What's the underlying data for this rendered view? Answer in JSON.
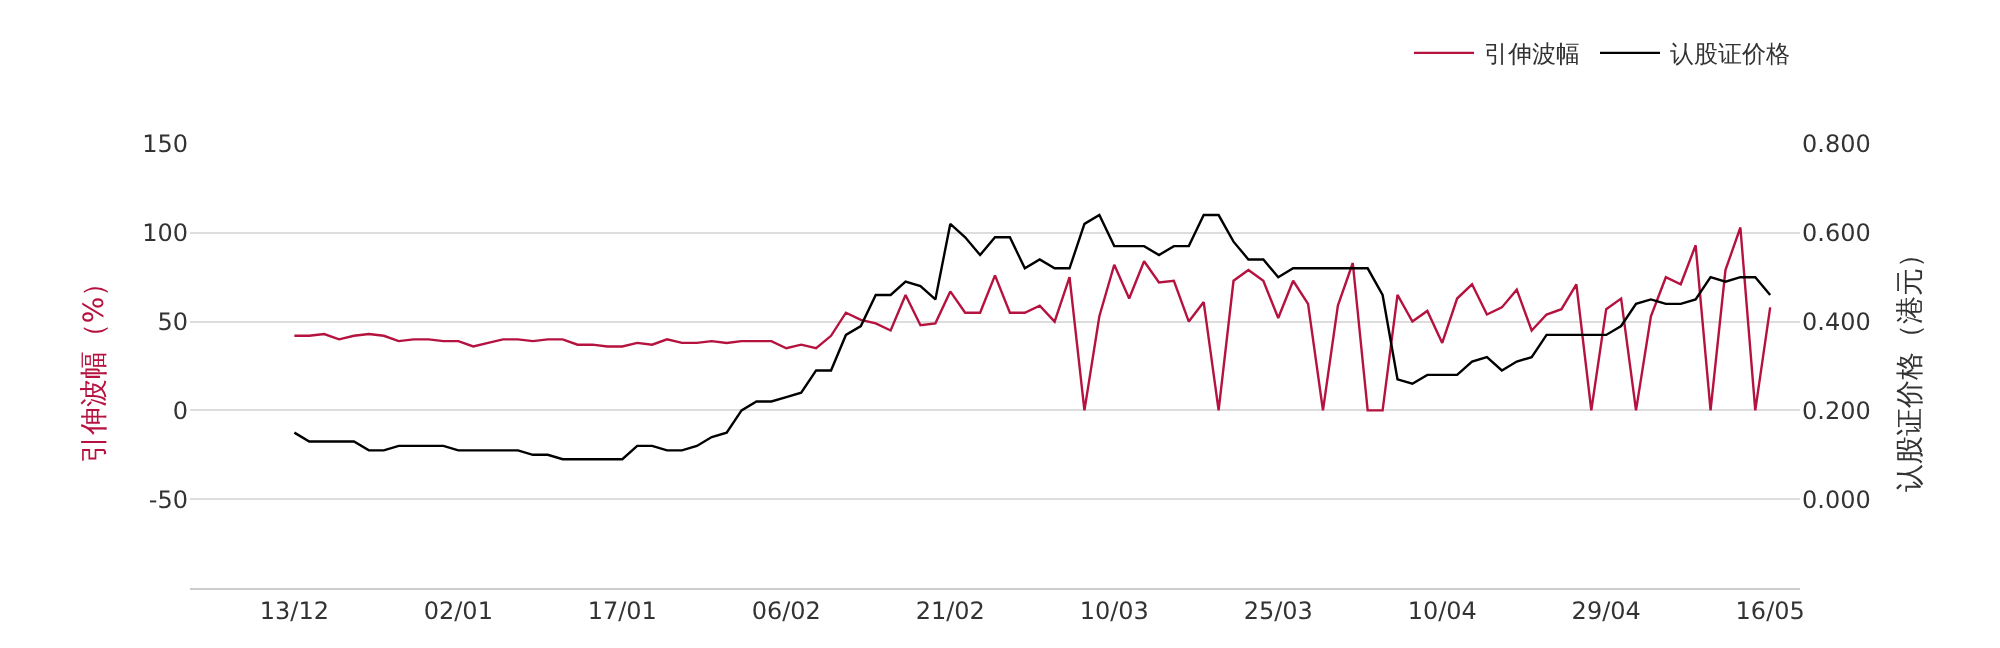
{
  "chart_data": {
    "type": "line",
    "ylabel": "引伸波幅（%）",
    "y2label": "认股证价格（港元）",
    "categories": [
      "13/12",
      null,
      null,
      null,
      null,
      null,
      null,
      null,
      null,
      null,
      null,
      "02/01",
      null,
      null,
      null,
      null,
      null,
      null,
      null,
      null,
      null,
      null,
      "17/01",
      null,
      null,
      null,
      null,
      null,
      null,
      null,
      null,
      null,
      null,
      "06/02",
      null,
      null,
      null,
      null,
      null,
      null,
      null,
      null,
      null,
      null,
      "21/02",
      null,
      null,
      null,
      null,
      null,
      null,
      null,
      null,
      null,
      null,
      "10/03",
      null,
      null,
      null,
      null,
      null,
      null,
      null,
      null,
      null,
      null,
      "25/03",
      null,
      null,
      null,
      null,
      null,
      null,
      null,
      null,
      null,
      null,
      "10/04",
      null,
      null,
      null,
      null,
      null,
      null,
      null,
      null,
      null,
      null,
      "29/04",
      null,
      null,
      null,
      null,
      null,
      null,
      null,
      null,
      null,
      null,
      "16/05"
    ],
    "series": [
      {
        "name": "引伸波幅",
        "color": "#b5123f",
        "values": [
          42,
          42,
          43,
          40,
          42,
          43,
          42,
          39,
          40,
          40,
          39,
          39,
          36,
          38,
          40,
          40,
          39,
          40,
          40,
          37,
          37,
          36,
          36,
          38,
          37,
          40,
          38,
          38,
          39,
          38,
          39,
          39,
          39,
          35,
          37,
          35,
          42,
          55,
          51,
          49,
          45,
          65,
          48,
          49,
          67,
          55,
          55,
          76,
          55,
          55,
          59,
          50,
          75,
          0,
          53,
          82,
          63,
          84,
          72,
          73,
          50,
          61,
          0,
          73,
          79,
          73,
          52,
          73,
          60,
          0,
          59,
          83,
          0,
          0,
          65,
          50,
          56,
          38,
          63,
          71,
          54,
          58,
          68,
          45,
          54,
          57,
          71,
          0,
          57,
          63,
          0,
          53,
          75,
          71,
          93,
          0,
          79,
          103,
          0,
          58
        ]
      },
      {
        "name": "认股证价格",
        "color": "#000000",
        "axis": "y2",
        "values": [
          0.15,
          0.13,
          0.13,
          0.13,
          0.13,
          0.11,
          0.11,
          0.12,
          0.12,
          0.12,
          0.12,
          0.11,
          0.11,
          0.11,
          0.11,
          0.11,
          0.1,
          0.1,
          0.09,
          0.09,
          0.09,
          0.09,
          0.09,
          0.12,
          0.12,
          0.11,
          0.11,
          0.12,
          0.14,
          0.15,
          0.2,
          0.22,
          0.22,
          0.23,
          0.24,
          0.29,
          0.29,
          0.37,
          0.39,
          0.46,
          0.46,
          0.49,
          0.48,
          0.45,
          0.62,
          0.59,
          0.55,
          0.59,
          0.59,
          0.52,
          0.54,
          0.52,
          0.52,
          0.62,
          0.64,
          0.57,
          0.57,
          0.57,
          0.55,
          0.57,
          0.57,
          0.64,
          0.64,
          0.58,
          0.54,
          0.54,
          0.5,
          0.52,
          0.52,
          0.52,
          0.52,
          0.52,
          0.52,
          0.46,
          0.27,
          0.26,
          0.28,
          0.28,
          0.28,
          0.31,
          0.32,
          0.29,
          0.31,
          0.32,
          0.37,
          0.37,
          0.37,
          0.37,
          0.37,
          0.39,
          0.44,
          0.45,
          0.44,
          0.44,
          0.45,
          0.5,
          0.49,
          0.5,
          0.5,
          0.46
        ]
      }
    ],
    "ylim": [
      -100,
      150
    ],
    "yticks": [
      -50,
      0,
      50,
      100,
      150
    ],
    "y2lim": [
      -0.2,
      0.8
    ],
    "y2ticks": [
      {
        "value": 0,
        "label": "0.000"
      },
      {
        "value": 0.2,
        "label": "0.200"
      },
      {
        "value": 0.4,
        "label": "0.400"
      },
      {
        "value": 0.6,
        "label": "0.600"
      },
      {
        "value": 0.8,
        "label": "0.800"
      }
    ],
    "grid": "y",
    "legend": "top right",
    "marker": "none",
    "line_style": "solid"
  }
}
